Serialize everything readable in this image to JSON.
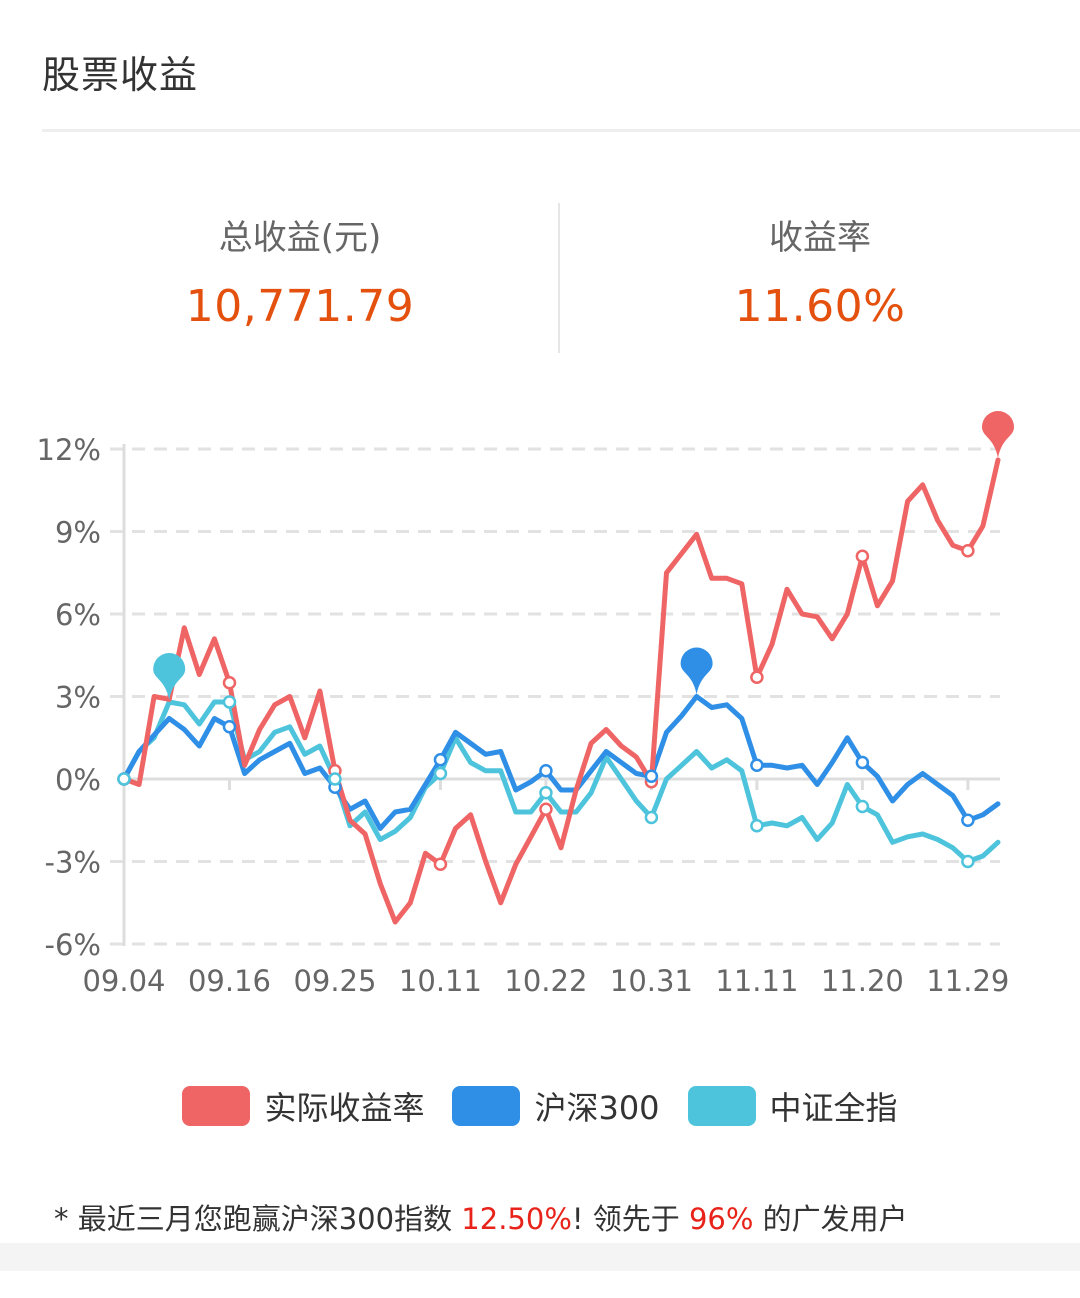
{
  "header": {
    "title": "股票收益"
  },
  "stats": [
    {
      "label": "总收益(元)",
      "value": "10,771.79"
    },
    {
      "label": "收益率",
      "value": "11.60%"
    }
  ],
  "legend": [
    {
      "label": "实际收益率",
      "color": "#ef6464"
    },
    {
      "label": "沪深300",
      "color": "#2f8fe6"
    },
    {
      "label": "中证全指",
      "color": "#4ec4dc"
    }
  ],
  "footer": {
    "prefix": "* 最近三月您跑赢沪深300指数 ",
    "highlight1": "12.50%",
    "middle": "! 领先于 ",
    "highlight2": "96%",
    "suffix": " 的广发用户"
  },
  "chart_data": {
    "type": "line",
    "title": "",
    "xlabel": "",
    "ylabel": "",
    "ylim": [
      -6,
      12
    ],
    "yticks": [
      "12%",
      "9%",
      "6%",
      "3%",
      "0%",
      "-3%",
      "-6%"
    ],
    "ytick_values": [
      12,
      9,
      6,
      3,
      0,
      -3,
      -6
    ],
    "x_tick_labels": [
      "09.04",
      "09.16",
      "09.25",
      "10.11",
      "10.22",
      "10.31",
      "11.11",
      "11.20",
      "11.29"
    ],
    "x_tick_indices": [
      0,
      7,
      14,
      21,
      28,
      35,
      42,
      49,
      56
    ],
    "grid": "dashed horizontal",
    "legend_position": "bottom",
    "series": [
      {
        "name": "实际收益率",
        "color": "#ef6464",
        "values": [
          0.0,
          -0.2,
          3.0,
          2.9,
          5.5,
          3.8,
          5.1,
          3.5,
          0.5,
          1.8,
          2.7,
          3.0,
          1.5,
          3.2,
          0.3,
          -1.5,
          -2.0,
          -3.8,
          -5.2,
          -4.5,
          -2.7,
          -3.1,
          -1.8,
          -1.3,
          -3.0,
          -4.5,
          -3.1,
          -2.1,
          -1.1,
          -2.5,
          -0.4,
          1.3,
          1.8,
          1.2,
          0.8,
          -0.1,
          7.5,
          8.2,
          8.9,
          7.3,
          7.3,
          7.1,
          3.7,
          4.9,
          6.9,
          6.0,
          5.9,
          5.1,
          6.0,
          8.1,
          6.3,
          7.2,
          10.1,
          10.7,
          9.4,
          8.5,
          8.3,
          9.2,
          11.6
        ]
      },
      {
        "name": "沪深300",
        "color": "#2f8fe6",
        "values": [
          0.0,
          1.0,
          1.6,
          2.2,
          1.8,
          1.2,
          2.2,
          1.9,
          0.2,
          0.7,
          1.0,
          1.3,
          0.2,
          0.4,
          -0.3,
          -1.1,
          -0.8,
          -1.8,
          -1.2,
          -1.1,
          -0.2,
          0.7,
          1.7,
          1.3,
          0.9,
          1.0,
          -0.4,
          -0.1,
          0.3,
          -0.4,
          -0.4,
          0.3,
          1.0,
          0.6,
          0.2,
          0.1,
          1.7,
          2.3,
          3.0,
          2.6,
          2.7,
          2.2,
          0.5,
          0.5,
          0.4,
          0.5,
          -0.2,
          0.6,
          1.5,
          0.6,
          0.1,
          -0.8,
          -0.2,
          0.2,
          -0.2,
          -0.6,
          -1.5,
          -1.3,
          -0.9
        ]
      },
      {
        "name": "中证全指",
        "color": "#4ec4dc",
        "values": [
          0.0,
          1.0,
          1.5,
          2.8,
          2.7,
          2.0,
          2.8,
          2.8,
          0.7,
          1.0,
          1.7,
          1.9,
          0.9,
          1.2,
          0.0,
          -1.7,
          -1.2,
          -2.2,
          -1.9,
          -1.4,
          -0.3,
          0.2,
          1.5,
          0.6,
          0.3,
          0.3,
          -1.2,
          -1.2,
          -0.5,
          -1.2,
          -1.2,
          -0.5,
          0.8,
          0.0,
          -0.8,
          -1.4,
          0.0,
          0.5,
          1.0,
          0.4,
          0.7,
          0.3,
          -1.7,
          -1.6,
          -1.7,
          -1.4,
          -2.2,
          -1.6,
          -0.2,
          -1.0,
          -1.3,
          -2.3,
          -2.1,
          -2.0,
          -2.2,
          -2.5,
          -3.0,
          -2.8,
          -2.3
        ]
      }
    ],
    "markers": [
      {
        "series": "实际收益率",
        "index": 58,
        "type": "pin"
      },
      {
        "series": "沪深300",
        "index": 38,
        "type": "pin"
      },
      {
        "series": "中证全指",
        "index": 3,
        "type": "pin"
      }
    ],
    "hollow_point_indices": [
      0,
      7,
      14,
      21,
      28,
      35,
      42,
      49,
      56
    ]
  }
}
